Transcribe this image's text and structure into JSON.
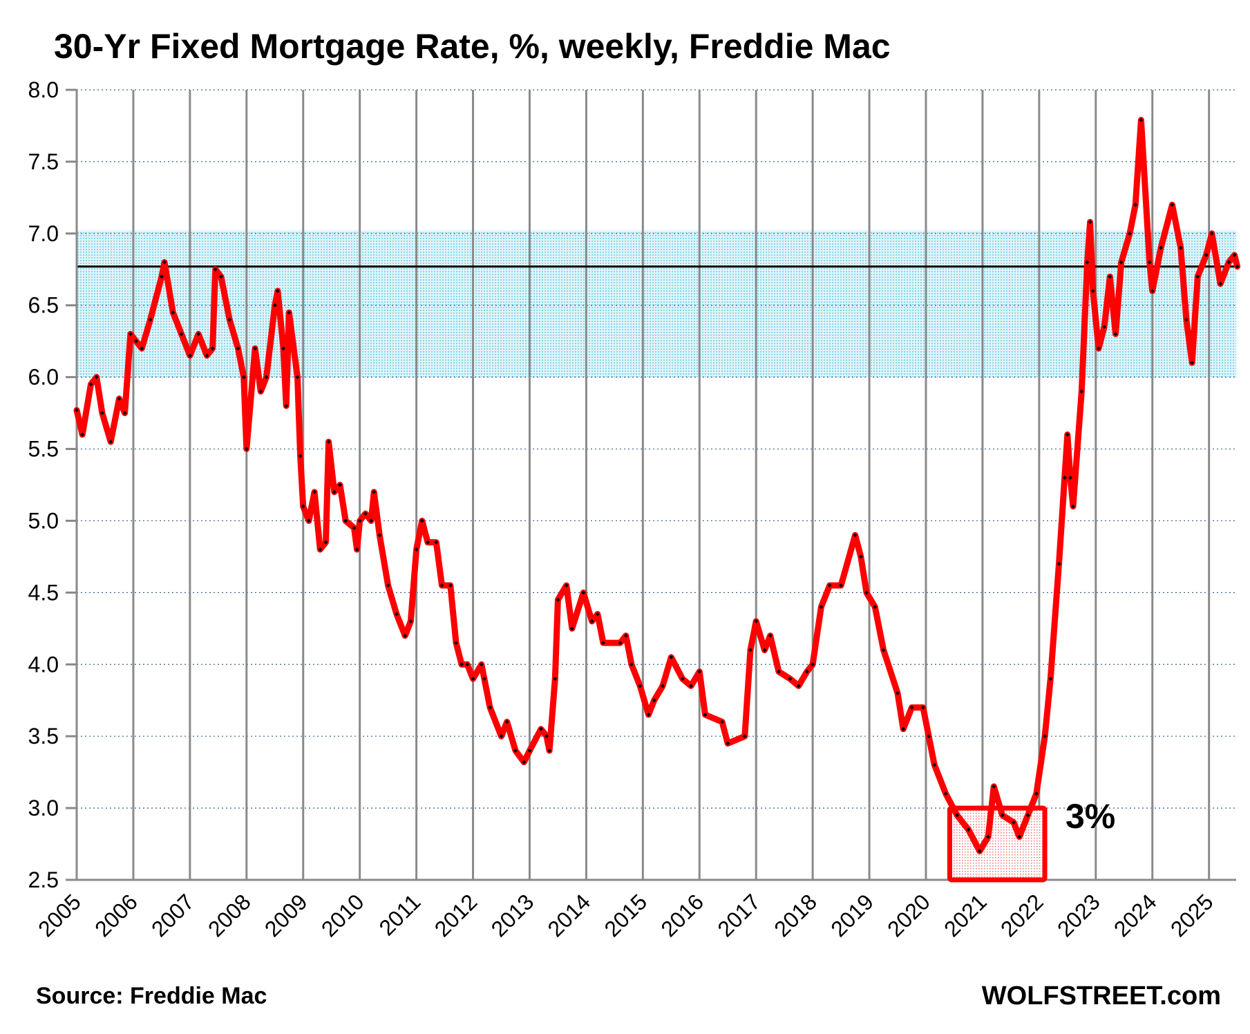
{
  "chart_data": {
    "type": "line",
    "title": "30-Yr Fixed Mortgage Rate, %, weekly, Freddie Mac",
    "xlabel": "",
    "ylabel": "",
    "ylim": [
      2.5,
      8.0
    ],
    "xlim": [
      2005,
      2025.48
    ],
    "yticks": [
      "8.0",
      "7.5",
      "7.0",
      "6.5",
      "6.0",
      "5.5",
      "5.0",
      "4.5",
      "4.0",
      "3.5",
      "3.0",
      "2.5"
    ],
    "xticks": [
      "2005",
      "2006",
      "2007",
      "2008",
      "2009",
      "2010",
      "2011",
      "2012",
      "2013",
      "2014",
      "2015",
      "2016",
      "2017",
      "2018",
      "2019",
      "2020",
      "2021",
      "2022",
      "2023",
      "2024",
      "2025"
    ],
    "grid": true,
    "colors": {
      "line": "#ff0000",
      "marker": "#000000",
      "band": "#8fdcef",
      "ref_line": "#000000",
      "box": "#ff0000"
    },
    "band": {
      "from": 6.0,
      "to": 7.02
    },
    "reference_line": 6.77,
    "highlight_box": {
      "x_from": 2020.42,
      "x_to": 2022.1,
      "y_from": 2.5,
      "y_to": 3.0
    },
    "annotation": "3%",
    "series": [
      {
        "name": "30-Yr Fixed Mortgage Rate",
        "x": [
          2005.0,
          2005.1,
          2005.25,
          2005.35,
          2005.45,
          2005.6,
          2005.75,
          2005.85,
          2005.95,
          2006.05,
          2006.15,
          2006.3,
          2006.5,
          2006.55,
          2006.7,
          2006.85,
          2007.0,
          2007.15,
          2007.3,
          2007.4,
          2007.45,
          2007.55,
          2007.7,
          2007.85,
          2007.95,
          2008.0,
          2008.15,
          2008.25,
          2008.35,
          2008.5,
          2008.55,
          2008.65,
          2008.7,
          2008.75,
          2008.9,
          2008.95,
          2009.0,
          2009.1,
          2009.2,
          2009.3,
          2009.4,
          2009.45,
          2009.55,
          2009.65,
          2009.75,
          2009.9,
          2009.95,
          2010.0,
          2010.1,
          2010.2,
          2010.25,
          2010.35,
          2010.5,
          2010.65,
          2010.8,
          2010.9,
          2011.0,
          2011.1,
          2011.2,
          2011.35,
          2011.45,
          2011.6,
          2011.7,
          2011.8,
          2011.9,
          2012.0,
          2012.15,
          2012.2,
          2012.3,
          2012.5,
          2012.6,
          2012.75,
          2012.9,
          2013.0,
          2013.2,
          2013.3,
          2013.35,
          2013.45,
          2013.5,
          2013.65,
          2013.75,
          2013.95,
          2014.1,
          2014.2,
          2014.3,
          2014.6,
          2014.7,
          2014.8,
          2014.95,
          2015.1,
          2015.2,
          2015.35,
          2015.5,
          2015.7,
          2015.85,
          2016.0,
          2016.1,
          2016.4,
          2016.5,
          2016.8,
          2016.9,
          2017.0,
          2017.15,
          2017.25,
          2017.4,
          2017.6,
          2017.75,
          2017.9,
          2018.0,
          2018.15,
          2018.3,
          2018.5,
          2018.75,
          2018.85,
          2018.95,
          2019.1,
          2019.25,
          2019.5,
          2019.6,
          2019.75,
          2019.95,
          2020.05,
          2020.15,
          2020.35,
          2020.55,
          2020.75,
          2020.95,
          2021.1,
          2021.2,
          2021.35,
          2021.55,
          2021.65,
          2021.8,
          2021.95,
          2022.1,
          2022.2,
          2022.35,
          2022.45,
          2022.5,
          2022.55,
          2022.6,
          2022.75,
          2022.85,
          2022.9,
          2022.95,
          2023.05,
          2023.15,
          2023.25,
          2023.35,
          2023.45,
          2023.6,
          2023.7,
          2023.8,
          2023.95,
          2024.0,
          2024.15,
          2024.35,
          2024.5,
          2024.6,
          2024.7,
          2024.8,
          2024.95,
          2025.05,
          2025.2,
          2025.35,
          2025.45,
          2025.5
        ],
        "values": [
          5.77,
          5.6,
          5.95,
          6.0,
          5.75,
          5.55,
          5.85,
          5.75,
          6.3,
          6.25,
          6.2,
          6.4,
          6.7,
          6.8,
          6.45,
          6.3,
          6.15,
          6.3,
          6.15,
          6.2,
          6.75,
          6.7,
          6.4,
          6.2,
          6.0,
          5.5,
          6.2,
          5.9,
          6.0,
          6.5,
          6.6,
          6.2,
          5.8,
          6.45,
          6.0,
          5.45,
          5.1,
          5.0,
          5.2,
          4.8,
          4.85,
          5.55,
          5.2,
          5.25,
          5.0,
          4.95,
          4.8,
          5.0,
          5.05,
          5.0,
          5.2,
          4.9,
          4.55,
          4.35,
          4.2,
          4.3,
          4.8,
          5.0,
          4.85,
          4.85,
          4.55,
          4.55,
          4.15,
          4.0,
          4.0,
          3.9,
          4.0,
          3.9,
          3.7,
          3.5,
          3.6,
          3.4,
          3.32,
          3.4,
          3.55,
          3.5,
          3.4,
          3.9,
          4.45,
          4.55,
          4.25,
          4.5,
          4.3,
          4.35,
          4.15,
          4.15,
          4.2,
          4.0,
          3.85,
          3.65,
          3.75,
          3.85,
          4.05,
          3.9,
          3.85,
          3.95,
          3.65,
          3.6,
          3.45,
          3.5,
          4.1,
          4.3,
          4.1,
          4.2,
          3.95,
          3.9,
          3.85,
          3.95,
          4.0,
          4.4,
          4.55,
          4.55,
          4.9,
          4.75,
          4.5,
          4.4,
          4.1,
          3.8,
          3.55,
          3.7,
          3.7,
          3.5,
          3.3,
          3.1,
          2.95,
          2.85,
          2.7,
          2.8,
          3.15,
          2.95,
          2.9,
          2.8,
          2.95,
          3.1,
          3.5,
          3.9,
          4.7,
          5.3,
          5.6,
          5.3,
          5.1,
          5.9,
          6.8,
          7.08,
          6.6,
          6.2,
          6.35,
          6.7,
          6.3,
          6.8,
          7.0,
          7.2,
          7.79,
          6.8,
          6.6,
          6.9,
          7.2,
          6.9,
          6.4,
          6.1,
          6.7,
          6.85,
          7.0,
          6.65,
          6.8,
          6.85,
          6.77
        ]
      }
    ]
  },
  "footer": {
    "source": "Source: Freddie Mac",
    "brand": "WOLFSTREET.com"
  }
}
